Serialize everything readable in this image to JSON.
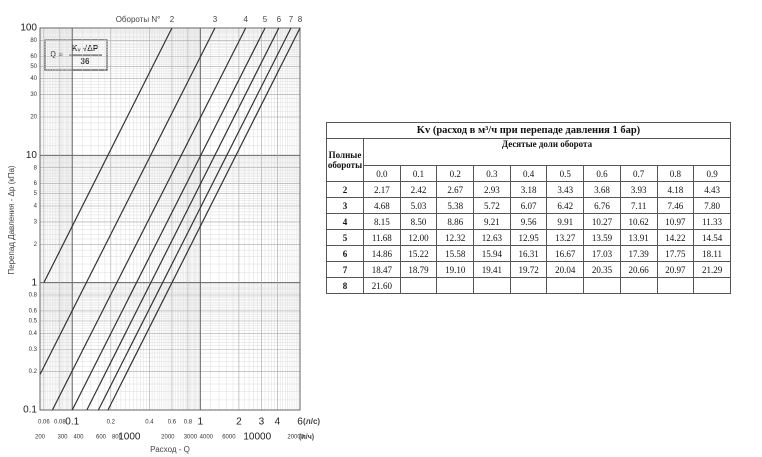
{
  "chart_data": {
    "type": "line",
    "series_label": "Обороты N°",
    "formula": {
      "lhs": "Q =",
      "numerator": "Kᵥ √ΔP",
      "denominator": "36"
    },
    "ylabel": "Перепад Давления -  Δp (кПа)",
    "xlabel": "Расход -  Q",
    "xunit": "(л/с)",
    "x2unit": "(л/ч)",
    "log_x": true,
    "log_y": true,
    "grid": true,
    "color": "#333333",
    "xlim": [
      0.056,
      6
    ],
    "ylim": [
      0.1,
      100
    ],
    "x2lim": [
      200,
      21600
    ],
    "xticks": [
      0.06,
      0.08,
      0.1,
      0.2,
      0.4,
      0.6,
      0.8,
      1,
      2,
      3,
      4,
      6
    ],
    "x2ticks": [
      200,
      300,
      400,
      600,
      800,
      1000,
      2000,
      3000,
      4000,
      6000,
      10000,
      20000
    ],
    "yticks": [
      100,
      80,
      60,
      50,
      40,
      30,
      20,
      10,
      8,
      6,
      5,
      4,
      3,
      2,
      1,
      0.8,
      0.6,
      0.5,
      0.4,
      0.3,
      0.2,
      0.1
    ],
    "series": [
      {
        "name": "2",
        "x": [
          0.06,
          0.6
        ],
        "values": [
          1,
          100
        ]
      },
      {
        "name": "3",
        "x": [
          0.056,
          1.3
        ],
        "values": [
          0.19,
          100
        ]
      },
      {
        "name": "4",
        "x": [
          0.07,
          2.26
        ],
        "values": [
          0.1,
          100
        ]
      },
      {
        "name": "5",
        "x": [
          0.1,
          3.2
        ],
        "values": [
          0.1,
          100
        ]
      },
      {
        "name": "6",
        "x": [
          0.13,
          4.1
        ],
        "values": [
          0.1,
          100
        ]
      },
      {
        "name": "7",
        "x": [
          0.16,
          5.1
        ],
        "values": [
          0.1,
          100
        ]
      },
      {
        "name": "8",
        "x": [
          0.19,
          6
        ],
        "values": [
          0.1,
          100
        ]
      }
    ]
  },
  "table": {
    "title": "Kv (расход в м³/ч при перепаде давления 1 бар)",
    "row_header": "Полные обороты",
    "col_header": "Десятые доли оборота",
    "columns": [
      "0.0",
      "0.1",
      "0.2",
      "0.3",
      "0.4",
      "0.5",
      "0.6",
      "0.7",
      "0.8",
      "0.9"
    ],
    "rows": [
      {
        "label": "2",
        "cells": [
          "2.17",
          "2.42",
          "2.67",
          "2.93",
          "3.18",
          "3.43",
          "3.68",
          "3.93",
          "4.18",
          "4.43"
        ]
      },
      {
        "label": "3",
        "cells": [
          "4.68",
          "5.03",
          "5.38",
          "5.72",
          "6.07",
          "6.42",
          "6.76",
          "7.11",
          "7.46",
          "7.80"
        ]
      },
      {
        "label": "4",
        "cells": [
          "8.15",
          "8.50",
          "8.86",
          "9.21",
          "9.56",
          "9.91",
          "10.27",
          "10.62",
          "10.97",
          "11.33"
        ]
      },
      {
        "label": "5",
        "cells": [
          "11.68",
          "12.00",
          "12.32",
          "12.63",
          "12.95",
          "13.27",
          "13.59",
          "13.91",
          "14.22",
          "14.54"
        ]
      },
      {
        "label": "6",
        "cells": [
          "14.86",
          "15.22",
          "15.58",
          "15.94",
          "16.31",
          "16.67",
          "17.03",
          "17.39",
          "17.75",
          "18.11"
        ]
      },
      {
        "label": "7",
        "cells": [
          "18.47",
          "18.79",
          "19.10",
          "19.41",
          "19.72",
          "20.04",
          "20.35",
          "20.66",
          "20.97",
          "21.29"
        ]
      },
      {
        "label": "8",
        "cells": [
          "21.60"
        ]
      }
    ]
  }
}
